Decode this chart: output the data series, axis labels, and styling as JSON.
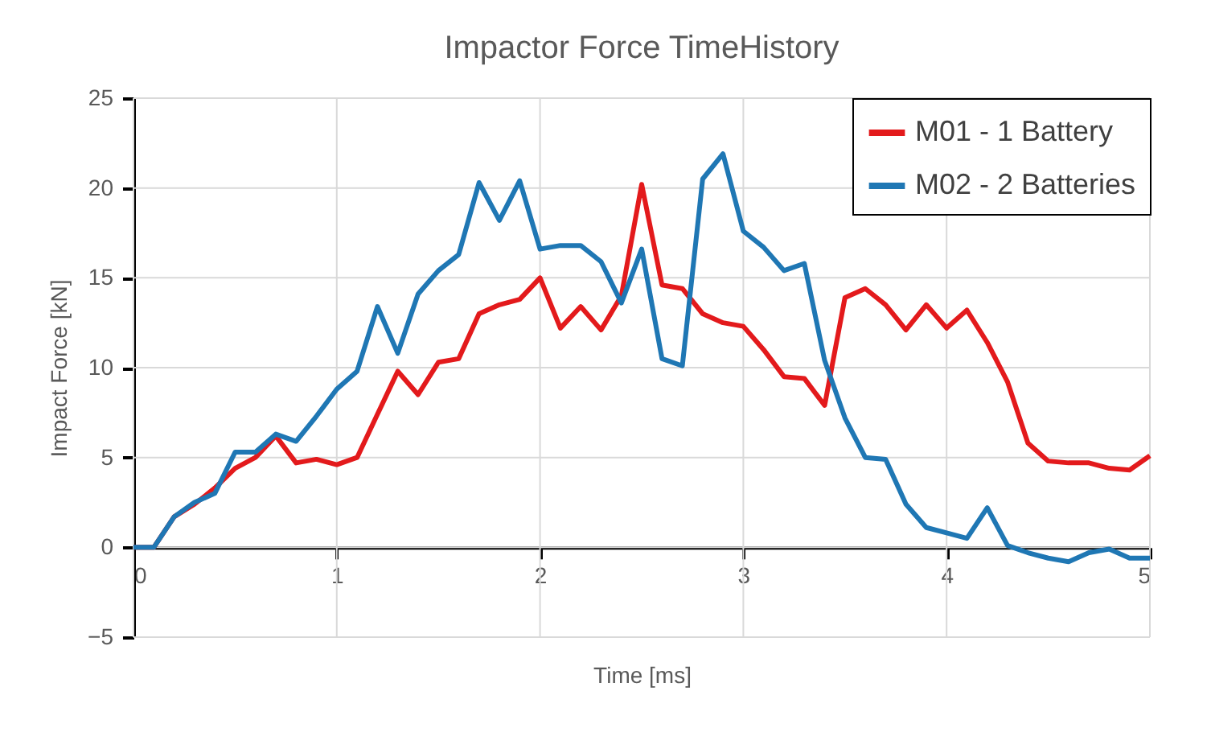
{
  "chart_data": {
    "type": "line",
    "title": "Impactor Force TimeHistory",
    "xlabel": "Time [ms]",
    "ylabel": "Impact Force [kN]",
    "x": [
      0,
      0.1,
      0.2,
      0.3,
      0.4,
      0.5,
      0.6,
      0.7,
      0.8,
      0.9,
      1.0,
      1.1,
      1.2,
      1.3,
      1.4,
      1.5,
      1.6,
      1.7,
      1.8,
      1.9,
      2.0,
      2.1,
      2.2,
      2.3,
      2.4,
      2.5,
      2.6,
      2.7,
      2.8,
      2.9,
      3.0,
      3.1,
      3.2,
      3.3,
      3.4,
      3.5,
      3.6,
      3.7,
      3.8,
      3.9,
      4.0,
      4.1,
      4.2,
      4.3,
      4.4,
      4.5,
      4.6,
      4.7,
      4.8,
      4.9,
      5.0
    ],
    "series": [
      {
        "name": "M01 - 1 Battery",
        "color": "#e31a1c",
        "values": [
          0,
          0,
          1.7,
          2.4,
          3.3,
          4.4,
          5.0,
          6.2,
          4.7,
          4.9,
          4.6,
          5.0,
          7.4,
          9.8,
          8.5,
          10.3,
          10.5,
          13.0,
          13.5,
          13.8,
          15.0,
          12.2,
          13.4,
          12.1,
          14.0,
          20.2,
          14.6,
          14.4,
          13.0,
          12.5,
          12.3,
          11.0,
          9.5,
          9.4,
          7.9,
          13.9,
          14.4,
          13.5,
          12.1,
          13.5,
          12.2,
          13.2,
          11.4,
          9.2,
          5.8,
          4.8,
          4.7,
          4.7,
          4.4,
          4.3,
          5.1
        ]
      },
      {
        "name": "M02 - 2 Batteries",
        "color": "#1f77b4",
        "values": [
          0,
          0,
          1.7,
          2.5,
          3.0,
          5.3,
          5.3,
          6.3,
          5.9,
          7.3,
          8.8,
          9.8,
          13.4,
          10.8,
          14.1,
          15.4,
          16.3,
          20.3,
          18.2,
          20.4,
          16.6,
          16.8,
          16.8,
          15.9,
          13.6,
          16.6,
          10.5,
          10.1,
          20.5,
          21.9,
          17.6,
          16.7,
          15.4,
          15.8,
          10.4,
          7.2,
          5.0,
          4.9,
          2.4,
          1.1,
          0.8,
          0.5,
          2.2,
          0.1,
          -0.3,
          -0.6,
          -0.8,
          -0.3,
          -0.1,
          -0.6,
          -0.6
        ]
      }
    ],
    "xlim": [
      0,
      5
    ],
    "xticks": [
      0,
      1,
      2,
      3,
      4,
      5
    ],
    "ylim": [
      -5,
      25
    ],
    "yticks": [
      -5,
      0,
      5,
      10,
      15,
      20,
      25
    ],
    "grid": true,
    "legend": "top right",
    "marker": "none",
    "line_style": "solid"
  }
}
